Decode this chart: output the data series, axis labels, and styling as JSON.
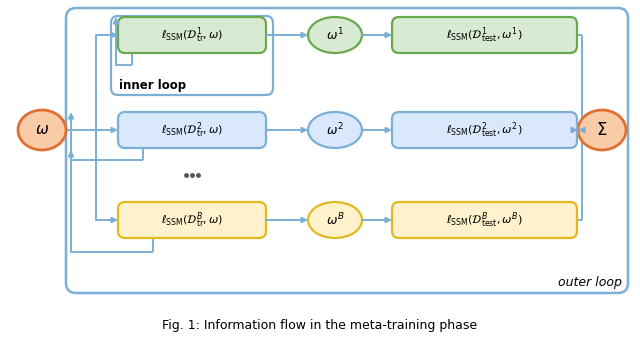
{
  "title": "Fig. 1: Information flow in the meta-training phase",
  "bg_color": "#ffffff",
  "outer_box_color": "#7bafd4",
  "inner_box_color": "#7bafd4",
  "row1_fill": "#d9ead3",
  "row1_edge": "#6aa84f",
  "row2_fill": "#dae8fc",
  "row2_edge": "#7bafd4",
  "row3_fill": "#fff2cc",
  "row3_edge": "#e6b820",
  "omega_fill": "#f9cba7",
  "omega_edge": "#e07030",
  "sigma_fill": "#f9cba7",
  "sigma_edge": "#e07030",
  "arrow_color": "#7bafd4",
  "text_color": "#000000",
  "inner_loop_label": "inner loop",
  "outer_loop_label": "outer loop",
  "rows": [
    {
      "tr_label": "$\\ell_{\\mathrm{SSM}}(\\mathcal{D}^{1}_{\\mathrm{tr}}, \\omega)$",
      "w_label": "$\\omega^{1}$",
      "test_label": "$\\ell_{\\mathrm{SSM}}(\\mathcal{D}^{1}_{\\mathrm{test}}, \\omega^{1})$",
      "fill": "#d9ead3",
      "edge": "#6aa84f"
    },
    {
      "tr_label": "$\\ell_{\\mathrm{SSM}}(\\mathcal{D}^{2}_{\\mathrm{tr}}, \\omega)$",
      "w_label": "$\\omega^{2}$",
      "test_label": "$\\ell_{\\mathrm{SSM}}(\\mathcal{D}^{2}_{\\mathrm{test}}, \\omega^{2})$",
      "fill": "#dae8fc",
      "edge": "#7bafd4"
    },
    {
      "tr_label": "$\\ell_{\\mathrm{SSM}}(\\mathcal{D}^{B}_{\\mathrm{tr}}, \\omega)$",
      "w_label": "$\\omega^{B}$",
      "test_label": "$\\ell_{\\mathrm{SSM}}(\\mathcal{D}^{B}_{\\mathrm{test}}, \\omega^{B})$",
      "fill": "#fff2cc",
      "edge": "#e6b820"
    }
  ]
}
